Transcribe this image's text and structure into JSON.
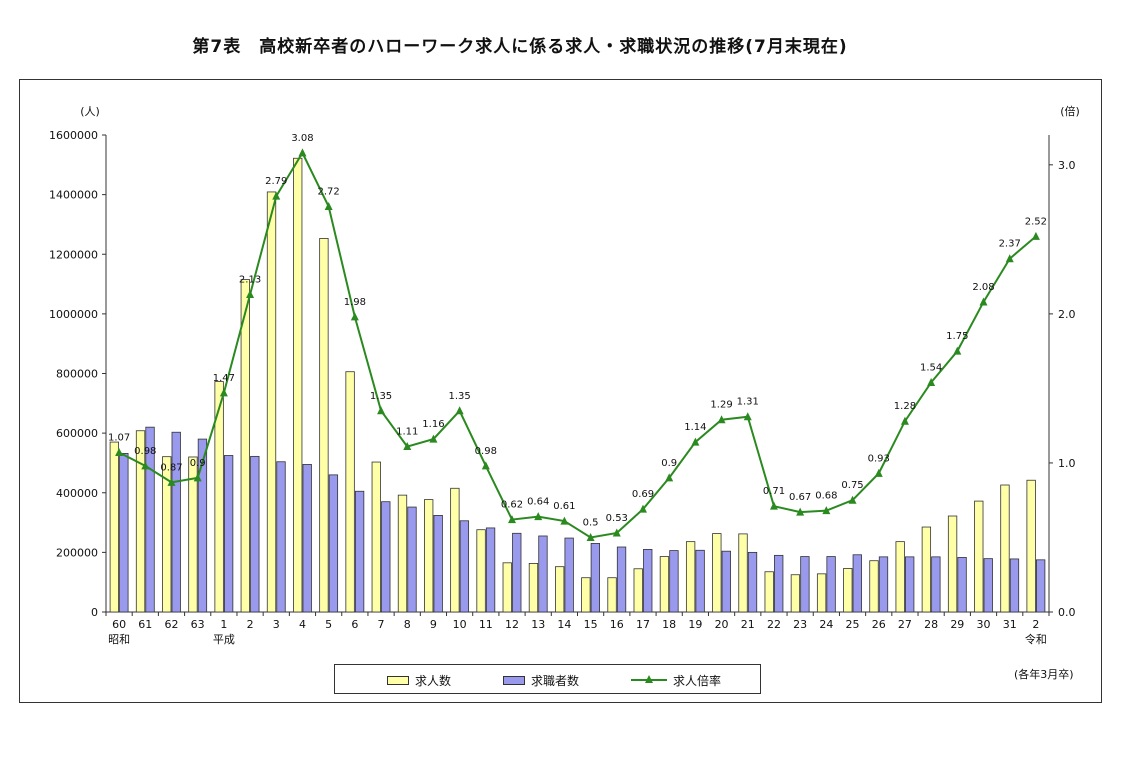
{
  "title": "第7表　高校新卒者のハローワーク求人に係る求人・求職状況の推移(7月末現在)",
  "footnote": "(各年3月卒)",
  "colors": {
    "offers": "#ffffa8",
    "seekers": "#9999ee",
    "ratio": "#2a8a1f"
  },
  "chart_data": {
    "type": "bar",
    "categories": [
      "60",
      "61",
      "62",
      "63",
      "1",
      "2",
      "3",
      "4",
      "5",
      "6",
      "7",
      "8",
      "9",
      "10",
      "11",
      "12",
      "13",
      "14",
      "15",
      "16",
      "17",
      "18",
      "19",
      "20",
      "21",
      "22",
      "23",
      "24",
      "25",
      "26",
      "27",
      "28",
      "29",
      "30",
      "31",
      "2"
    ],
    "era_labels": [
      {
        "index": 0,
        "text": "昭和"
      },
      {
        "index": 4,
        "text": "平成"
      },
      {
        "index": 35,
        "text": "令和"
      }
    ],
    "series": [
      {
        "name": "求人数",
        "type": "bar",
        "axis": "left",
        "values": [
          570000,
          608000,
          521000,
          520000,
          773000,
          1115000,
          1409000,
          1522000,
          1253000,
          806000,
          503000,
          392000,
          377000,
          415000,
          276000,
          165000,
          163000,
          152000,
          115000,
          115000,
          145000,
          186000,
          236000,
          263000,
          262000,
          135000,
          125000,
          128000,
          146000,
          172000,
          236000,
          285000,
          322000,
          372000,
          426000,
          442000
        ]
      },
      {
        "name": "求職者数",
        "type": "bar",
        "axis": "left",
        "values": [
          532000,
          620000,
          603000,
          580000,
          525000,
          522000,
          504000,
          495000,
          460000,
          405000,
          370000,
          352000,
          324000,
          306000,
          282000,
          264000,
          255000,
          248000,
          230000,
          218000,
          210000,
          206000,
          207000,
          204000,
          200000,
          190000,
          186000,
          186000,
          192000,
          185000,
          185000,
          185000,
          183000,
          179000,
          178000,
          175000
        ]
      },
      {
        "name": "求人倍率",
        "type": "line",
        "axis": "right",
        "values": [
          1.07,
          0.98,
          0.87,
          0.9,
          1.47,
          2.13,
          2.79,
          3.08,
          2.72,
          1.98,
          1.35,
          1.11,
          1.16,
          1.35,
          0.98,
          0.62,
          0.64,
          0.61,
          0.5,
          0.53,
          0.69,
          0.9,
          1.14,
          1.29,
          1.31,
          0.71,
          0.67,
          0.68,
          0.75,
          0.93,
          1.28,
          1.54,
          1.75,
          2.08,
          2.37,
          2.52
        ]
      }
    ],
    "ylabel_left": "(人)",
    "ylabel_right": "(倍)",
    "ylim_left": [
      0,
      1600000
    ],
    "ylim_right": [
      0.0,
      3.2
    ],
    "yticks_left": [
      0,
      200000,
      400000,
      600000,
      800000,
      1000000,
      1200000,
      1400000,
      1600000
    ],
    "yticks_left_labels": [
      "0",
      "200000",
      "400000",
      "600000",
      "800000",
      "1000000",
      "1200000",
      "1400000",
      "1600000"
    ],
    "yticks_right": [
      0.0,
      1.0,
      2.0,
      3.0
    ],
    "yticks_right_labels": [
      "0.0",
      "1.0",
      "2.0",
      "3.0"
    ],
    "ratio_labels": [
      "1.07",
      "0.98",
      "0.87",
      "0.9",
      "1.47",
      "2.13",
      "2.79",
      "3.08",
      "2.72",
      "1.98",
      "1.35",
      "1.11",
      "1.16",
      "1.35",
      "0.98",
      "0.62",
      "0.64",
      "0.61",
      "0.5",
      "0.53",
      "0.69",
      "0.9",
      "1.14",
      "1.29",
      "1.31",
      "0.71",
      "0.67",
      "0.68",
      "0.75",
      "0.93",
      "1.28",
      "1.54",
      "1.75",
      "2.08",
      "2.37",
      "2.52"
    ],
    "grid": false,
    "legend_position": "bottom-center"
  },
  "legend": [
    {
      "label": "求人数",
      "icon": "yellow-bar-swatch"
    },
    {
      "label": "求職者数",
      "icon": "blue-bar-swatch"
    },
    {
      "label": "求人倍率",
      "icon": "green-line-triangle-marker"
    }
  ]
}
